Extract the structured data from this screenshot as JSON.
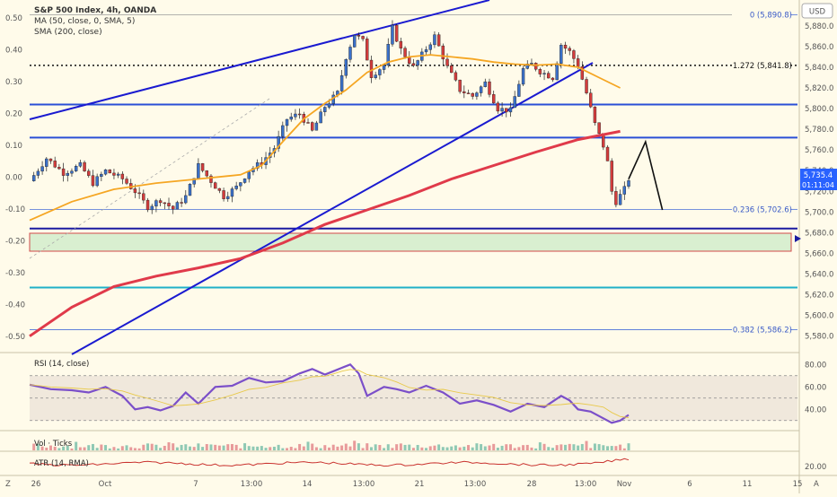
{
  "header": {
    "title": "S&P 500 Index, 4h, OANDA",
    "ma_label": "MA (50, close, 0, SMA, 5)",
    "sma_label": "SMA (200, close)"
  },
  "currency": "USD",
  "last_price": {
    "value": "5,735.4",
    "countdown": "01:11:04"
  },
  "left_axis_ticks": [
    "0.50",
    "0.40",
    "0.30",
    "0.20",
    "0.10",
    "0.00",
    "-0.10",
    "-0.20",
    "-0.30",
    "-0.40",
    "-0.50"
  ],
  "right_axis_ticks": [
    "5,880.0",
    "5,860.0",
    "5,840.0",
    "5,820.0",
    "5,800.0",
    "5,780.0",
    "5,760.0",
    "5,740.0",
    "5,720.0",
    "5,700.0",
    "5,680.0",
    "5,660.0",
    "5,640.0",
    "5,620.0",
    "5,600.0",
    "5,580.0"
  ],
  "fib_levels": [
    {
      "label": "0 (5,890.8)",
      "price": 5890.8
    },
    {
      "label": "1.272 (5,841.8)",
      "price": 5841.8
    },
    {
      "label": "0.236 (5,702.6)",
      "price": 5702.6
    },
    {
      "label": "0.382 (5,586.2)",
      "price": 5586.2
    }
  ],
  "horizontal_levels": [
    {
      "price": 5804,
      "color": "#2a4fd6"
    },
    {
      "price": 5772,
      "color": "#2a4fd6"
    },
    {
      "price": 5684,
      "color": "#1a1aa0"
    },
    {
      "price": 5627,
      "color": "#1fb0c8"
    }
  ],
  "support_zone": {
    "top": 5686,
    "bottom": 5664
  },
  "x_axis_labels": [
    "26",
    "Oct",
    "7",
    "13:00",
    "14",
    "13:00",
    "21",
    "13:00",
    "28",
    "13:00",
    "Nov",
    "6",
    "11",
    "15"
  ],
  "rsi": {
    "title": "RSI (14, close)",
    "ticks": [
      "80.00",
      "60.00",
      "40.00"
    ]
  },
  "volume": {
    "title": "Vol · Ticks"
  },
  "atr": {
    "title": "ATR (14, RMA)",
    "ticks": [
      "20.00"
    ]
  },
  "bottom_corners": {
    "left": "Z",
    "right": "A"
  },
  "chart_data": {
    "type": "candlestick",
    "symbol": "S&P 500 Index",
    "timeframe": "4h",
    "price_range": [
      5565,
      5905
    ],
    "close_path": [
      [
        0,
        5730
      ],
      [
        4,
        5752
      ],
      [
        8,
        5738
      ],
      [
        12,
        5745
      ],
      [
        15,
        5728
      ],
      [
        18,
        5740
      ],
      [
        22,
        5732
      ],
      [
        25,
        5720
      ],
      [
        28,
        5705
      ],
      [
        31,
        5712
      ],
      [
        34,
        5703
      ],
      [
        37,
        5715
      ],
      [
        40,
        5745
      ],
      [
        43,
        5730
      ],
      [
        46,
        5715
      ],
      [
        49,
        5724
      ],
      [
        52,
        5740
      ],
      [
        55,
        5748
      ],
      [
        58,
        5762
      ],
      [
        61,
        5790
      ],
      [
        64,
        5795
      ],
      [
        67,
        5778
      ],
      [
        70,
        5802
      ],
      [
        73,
        5815
      ],
      [
        75,
        5850
      ],
      [
        77,
        5872
      ],
      [
        79,
        5865
      ],
      [
        81,
        5832
      ],
      [
        84,
        5842
      ],
      [
        86,
        5878
      ],
      [
        88,
        5857
      ],
      [
        91,
        5840
      ],
      [
        94,
        5858
      ],
      [
        96,
        5870
      ],
      [
        99,
        5840
      ],
      [
        102,
        5818
      ],
      [
        105,
        5812
      ],
      [
        108,
        5825
      ],
      [
        111,
        5800
      ],
      [
        114,
        5798
      ],
      [
        117,
        5838
      ],
      [
        119,
        5843
      ],
      [
        121,
        5836
      ],
      [
        124,
        5830
      ],
      [
        126,
        5862
      ],
      [
        128,
        5855
      ],
      [
        130,
        5842
      ],
      [
        132,
        5815
      ],
      [
        134,
        5785
      ],
      [
        136,
        5764
      ],
      [
        137,
        5748
      ],
      [
        138,
        5720
      ],
      [
        139,
        5710
      ],
      [
        140,
        5716
      ],
      [
        141,
        5722
      ],
      [
        142,
        5732
      ]
    ],
    "ma50": [
      [
        0,
        5692
      ],
      [
        10,
        5710
      ],
      [
        20,
        5722
      ],
      [
        30,
        5728
      ],
      [
        40,
        5732
      ],
      [
        50,
        5736
      ],
      [
        55,
        5745
      ],
      [
        60,
        5768
      ],
      [
        65,
        5790
      ],
      [
        70,
        5805
      ],
      [
        75,
        5818
      ],
      [
        80,
        5835
      ],
      [
        85,
        5845
      ],
      [
        90,
        5850
      ],
      [
        95,
        5852
      ],
      [
        100,
        5850
      ],
      [
        105,
        5848
      ],
      [
        110,
        5845
      ],
      [
        115,
        5843
      ],
      [
        120,
        5842
      ],
      [
        125,
        5843
      ],
      [
        130,
        5840
      ],
      [
        135,
        5830
      ],
      [
        140,
        5820
      ]
    ],
    "sma200": [
      [
        0,
        5580
      ],
      [
        10,
        5608
      ],
      [
        20,
        5628
      ],
      [
        30,
        5638
      ],
      [
        40,
        5646
      ],
      [
        50,
        5655
      ],
      [
        60,
        5670
      ],
      [
        70,
        5688
      ],
      [
        80,
        5702
      ],
      [
        90,
        5716
      ],
      [
        100,
        5732
      ],
      [
        110,
        5745
      ],
      [
        120,
        5758
      ],
      [
        130,
        5770
      ],
      [
        135,
        5774
      ],
      [
        140,
        5778
      ]
    ],
    "projection": [
      [
        142,
        5732
      ],
      [
        146,
        5768
      ],
      [
        150,
        5702
      ]
    ],
    "rsi_path": [
      [
        0,
        62
      ],
      [
        5,
        58
      ],
      [
        10,
        57
      ],
      [
        14,
        55
      ],
      [
        18,
        60
      ],
      [
        22,
        52
      ],
      [
        25,
        40
      ],
      [
        28,
        42
      ],
      [
        31,
        39
      ],
      [
        34,
        43
      ],
      [
        37,
        55
      ],
      [
        40,
        45
      ],
      [
        44,
        60
      ],
      [
        48,
        61
      ],
      [
        52,
        68
      ],
      [
        56,
        64
      ],
      [
        60,
        65
      ],
      [
        64,
        72
      ],
      [
        67,
        76
      ],
      [
        70,
        71
      ],
      [
        72,
        74
      ],
      [
        74,
        77
      ],
      [
        76,
        80
      ],
      [
        78,
        72
      ],
      [
        80,
        52
      ],
      [
        84,
        60
      ],
      [
        87,
        58
      ],
      [
        90,
        55
      ],
      [
        94,
        61
      ],
      [
        98,
        55
      ],
      [
        102,
        45
      ],
      [
        106,
        48
      ],
      [
        110,
        44
      ],
      [
        114,
        38
      ],
      [
        118,
        45
      ],
      [
        122,
        42
      ],
      [
        126,
        52
      ],
      [
        128,
        48
      ],
      [
        130,
        40
      ],
      [
        133,
        38
      ],
      [
        136,
        32
      ],
      [
        138,
        28
      ],
      [
        140,
        30
      ],
      [
        142,
        35
      ]
    ]
  }
}
